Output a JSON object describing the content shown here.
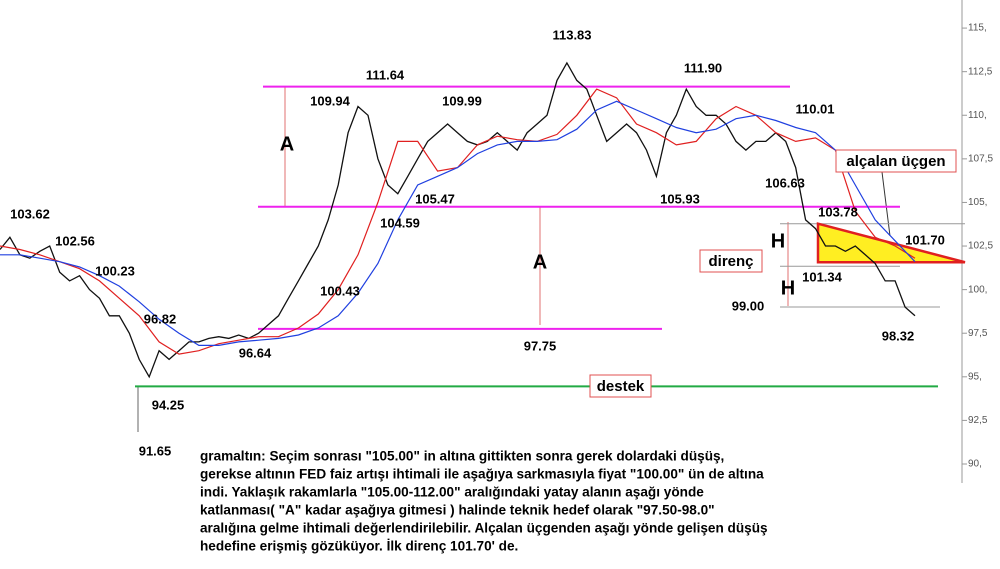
{
  "chart_data": {
    "type": "line",
    "ylim": [
      88.91,
      116.61
    ],
    "yticks": [
      {
        "value": 90,
        "label": "90,"
      },
      {
        "value": 92.5,
        "label": "92,5"
      },
      {
        "value": 95,
        "label": "95,"
      },
      {
        "value": 97.5,
        "label": "97,5"
      },
      {
        "value": 100,
        "label": "100,"
      },
      {
        "value": 102.5,
        "label": "102,5"
      },
      {
        "value": 105,
        "label": "105,"
      },
      {
        "value": 107.5,
        "label": "107,5"
      },
      {
        "value": 110,
        "label": "110,"
      },
      {
        "value": 112.5,
        "label": "112,5"
      },
      {
        "value": 115,
        "label": "115,"
      }
    ],
    "series": [
      {
        "color": "#111111",
        "values": [
          102.3,
          103.0,
          102.0,
          101.8,
          102.2,
          102.5,
          101.0,
          100.5,
          100.8,
          100.0,
          99.5,
          98.5,
          98.5,
          97.5,
          96.0,
          95.0,
          96.5,
          96.0,
          96.5,
          97.0,
          97.0,
          97.2,
          97.3,
          97.2,
          97.4,
          97.2,
          97.5,
          98.0,
          98.5,
          99.5,
          100.5,
          101.5,
          102.5,
          104.0,
          106.0,
          109.0,
          110.5,
          110.0,
          107.5,
          106.0,
          105.5,
          106.5,
          107.5,
          108.5,
          109.0,
          109.5,
          109.0,
          108.5,
          108.3,
          108.5,
          109.0,
          108.5,
          108.0,
          109.0,
          109.5,
          110.0,
          112.0,
          113.0,
          112.0,
          111.5,
          110.0,
          108.5,
          109.0,
          109.5,
          109.0,
          108.0,
          106.5,
          109.0,
          110.0,
          111.5,
          110.5,
          110.0,
          110.0,
          109.5,
          108.5,
          108.0,
          108.5,
          108.5,
          109.0,
          108.5,
          107.0,
          104.0,
          103.5,
          102.5,
          102.5,
          102.2,
          102.5,
          102.0,
          101.5,
          100.5,
          100.5,
          99.0,
          98.5
        ]
      },
      {
        "color": "#e02020",
        "values": [
          102.5,
          102.3,
          102.0,
          101.6,
          101.2,
          100.5,
          99.5,
          98.5,
          97.0,
          96.3,
          96.5,
          96.9,
          97.1,
          97.3,
          97.3,
          97.8,
          98.6,
          100.0,
          102.0,
          105.0,
          108.5,
          108.5,
          106.8,
          107.0,
          108.3,
          108.8,
          108.6,
          108.5,
          108.9,
          110.0,
          111.5,
          111.0,
          109.5,
          109.0,
          108.3,
          108.5,
          109.8,
          110.5,
          110.0,
          109.0,
          108.5,
          108.7,
          108.0,
          104.5,
          103.0,
          102.5,
          101.8
        ]
      },
      {
        "color": "#2040e0",
        "values": [
          102.0,
          102.0,
          101.8,
          101.6,
          101.3,
          100.8,
          100.2,
          99.3,
          98.3,
          97.5,
          96.8,
          96.8,
          97.0,
          97.1,
          97.2,
          97.4,
          97.8,
          98.5,
          99.8,
          101.5,
          104.0,
          106.0,
          106.5,
          107.0,
          107.8,
          108.3,
          108.5,
          108.5,
          108.6,
          109.2,
          110.3,
          110.8,
          110.3,
          109.8,
          109.3,
          109.0,
          109.2,
          109.8,
          110.0,
          109.7,
          109.3,
          109.0,
          108.0,
          106.0,
          104.0,
          102.8,
          101.6
        ]
      }
    ],
    "levels": [
      {
        "value": 111.64,
        "color": "#ee22ee"
      },
      {
        "value": 104.75,
        "color": "#ee22ee"
      },
      {
        "value": 97.75,
        "color": "#ee22ee"
      },
      {
        "value": 94.45,
        "color": "#22aa44"
      },
      {
        "value": 103.78,
        "color": "#999999"
      },
      {
        "value": 101.34,
        "color": "#999999"
      },
      {
        "value": 99.0,
        "color": "#999999"
      }
    ],
    "price_labels": [
      "103.62",
      "102.56",
      "100.23",
      "96.82",
      "94.25",
      "91.65",
      "96.64",
      "100.43",
      "111.64",
      "109.94",
      "105.47",
      "104.59",
      "109.99",
      "113.83",
      "111.90",
      "105.93",
      "110.01",
      "106.63",
      "103.78",
      "101.70",
      "101.34",
      "99.00",
      "98.32",
      "97.75"
    ],
    "pattern_labels": [
      "A",
      "A",
      "H",
      "H"
    ],
    "boxes": [
      "direnç",
      "destek",
      "alçalan üçgen"
    ],
    "description": [
      "gramaltın: Seçim sonrası \"105.00\" in altına gittikten sonra gerek dolardaki düşüş,",
      "gerekse altının FED faiz artışı ihtimali ile aşağıya sarkmasıyla fiyat \"100.00\" ün de altına",
      "indi. Yaklaşık rakamlarla \"105.00-112.00\" aralığındaki yatay alanın aşağı yönde",
      "katlanması( \"A\" kadar aşağıya gitmesi ) halinde teknik hedef olarak \"97.50-98.0\"",
      "aralığına gelme ihtimali  değerlendirilebilir. Alçalan üçgenden aşağı yönde gelişen düşüş",
      "hedefine erişmiş gözüküyor. İlk direnç 101.70' de."
    ]
  }
}
